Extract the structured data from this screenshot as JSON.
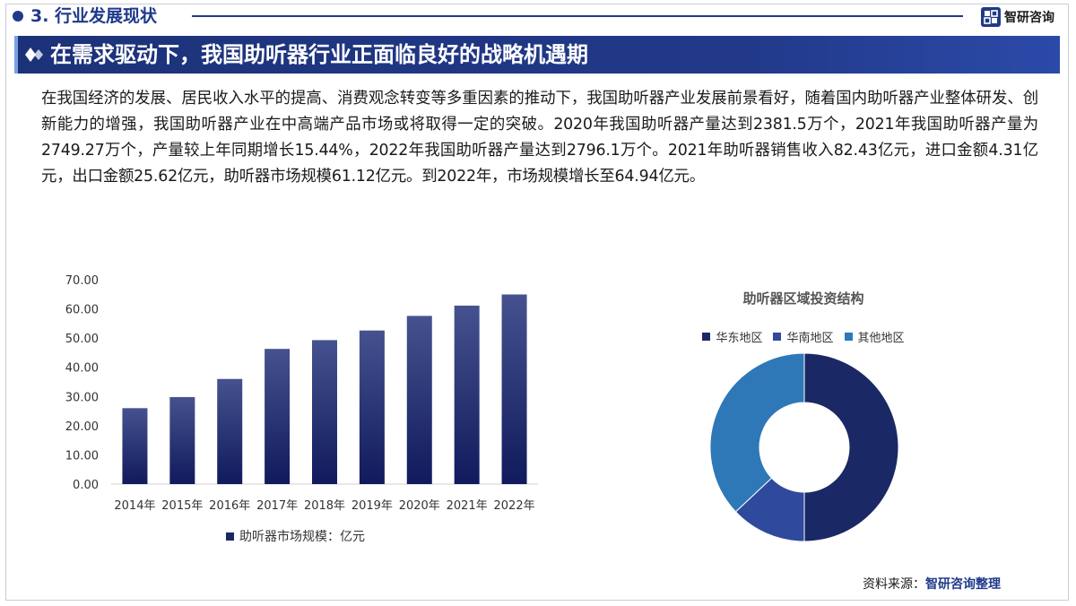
{
  "header": {
    "section_title": "3. 行业发展现状",
    "brand_name": "智研咨询"
  },
  "banner": {
    "title": "在需求驱动下，我国助听器行业正面临良好的战略机遇期"
  },
  "paragraph": "在我国经济的发展、居民收入水平的提高、消费观念转变等多重因素的推动下，我国助听器产业发展前景看好，随着国内助听器产业整体研发、创新能力的增强，我国助听器产业在中高端产品市场或将取得一定的突破。2020年我国助听器产量达到2381.5万个，2021年我国助听器产量为2749.27万个，产量较上年同期增长15.44%，2022年我国助听器产量达到2796.1万个。2021年助听器销售收入82.43亿元，进口金额4.31亿元，出口金额25.62亿元，助听器市场规模61.12亿元。到2022年，市场规模增长至64.94亿元。",
  "colors": {
    "brand": "#1f3a8a",
    "bar_top": "#46528f",
    "bar_bottom": "#101a5c",
    "east": "#1a2866",
    "south": "#2f4a9c",
    "other": "#2e78b8"
  },
  "chart_data": [
    {
      "type": "bar",
      "categories": [
        "2014年",
        "2015年",
        "2016年",
        "2017年",
        "2018年",
        "2019年",
        "2020年",
        "2021年",
        "2022年"
      ],
      "series": [
        {
          "name": "助听器市场规模：亿元",
          "values": [
            26.0,
            29.8,
            36.0,
            46.3,
            49.3,
            52.6,
            57.6,
            61.12,
            64.94
          ]
        }
      ],
      "ylim": [
        0,
        70
      ],
      "yticks": [
        "0.00",
        "10.00",
        "20.00",
        "30.00",
        "40.00",
        "50.00",
        "60.00",
        "70.00"
      ],
      "grid": false,
      "legend": "bottom"
    },
    {
      "type": "pie",
      "title": "助听器区域投资结构",
      "labels": [
        "华东地区",
        "华南地区",
        "其他地区"
      ],
      "values": [
        50,
        13,
        37
      ],
      "legend": "top"
    }
  ],
  "source": {
    "label": "资料来源：",
    "value": "智研咨询整理"
  }
}
